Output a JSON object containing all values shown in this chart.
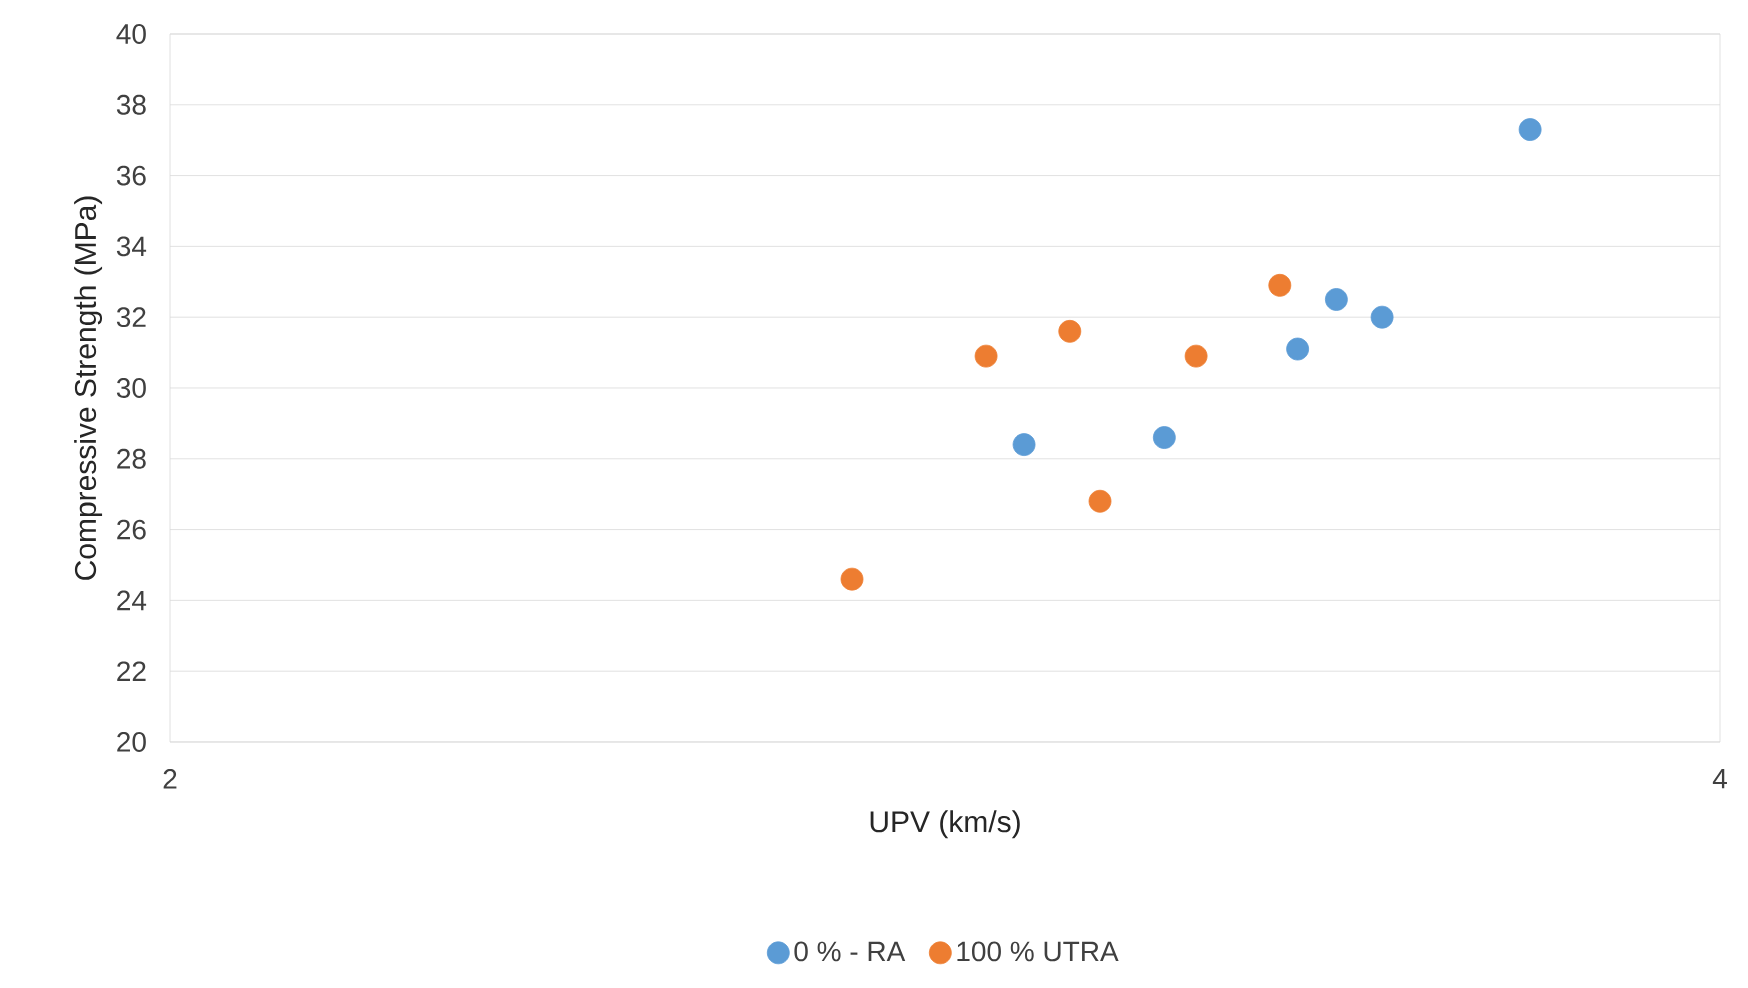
{
  "chart_data": {
    "type": "scatter",
    "xlabel": "UPV (km/s)",
    "ylabel": "Compressive Strength (MPa)",
    "xlim": [
      2,
      4
    ],
    "xticks": [
      2,
      4
    ],
    "ylim": [
      20,
      40
    ],
    "yticks": [
      20,
      22,
      24,
      26,
      28,
      30,
      32,
      34,
      36,
      38,
      40
    ],
    "grid": "y",
    "legend": "bottom",
    "marker": "circle",
    "series": [
      {
        "name": "0 % - RA",
        "color": "#5b9bd5",
        "x": [
          3.102,
          3.283,
          3.455,
          3.505,
          3.564,
          3.755
        ],
        "values": [
          28.4,
          28.6,
          31.1,
          32.5,
          32.0,
          37.3
        ]
      },
      {
        "name": "100 % UTRA",
        "color": "#ed7d31",
        "x": [
          2.88,
          3.053,
          3.161,
          3.2,
          3.324,
          3.432
        ],
        "values": [
          24.6,
          30.9,
          31.6,
          26.8,
          30.9,
          32.9
        ]
      }
    ]
  }
}
